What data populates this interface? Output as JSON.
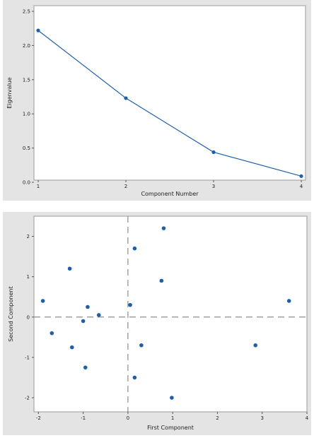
{
  "chart_data": [
    {
      "type": "line",
      "title": "",
      "xlabel": "Component Number",
      "ylabel": "Eigenvalue",
      "x": [
        1,
        2,
        3,
        4
      ],
      "series": [
        {
          "values": [
            2.22,
            1.23,
            0.44,
            0.09
          ]
        }
      ],
      "xlim": [
        1,
        4
      ],
      "ylim": [
        0,
        2.5
      ],
      "xticks": [
        1,
        2,
        3,
        4
      ],
      "xtick_labels": [
        "1",
        "2",
        "3",
        "4"
      ],
      "yticks": [
        0,
        0.5,
        1,
        1.5,
        2,
        2.5
      ],
      "ytick_labels": [
        "0.0",
        "0.5",
        "1.0",
        "1.5",
        "2.0",
        "2.5"
      ],
      "grid": false,
      "color": "#1f5fa8"
    },
    {
      "type": "scatter",
      "title": "",
      "xlabel": "First Component",
      "ylabel": "Second Component",
      "points": [
        [
          -1.9,
          0.4
        ],
        [
          -1.7,
          -0.4
        ],
        [
          -1.3,
          1.2
        ],
        [
          -1.25,
          -0.75
        ],
        [
          -1.0,
          -0.1
        ],
        [
          -0.95,
          -1.25
        ],
        [
          -0.9,
          0.25
        ],
        [
          -0.65,
          0.05
        ],
        [
          0.05,
          0.3
        ],
        [
          0.15,
          1.7
        ],
        [
          0.15,
          -1.5
        ],
        [
          0.3,
          -0.7
        ],
        [
          0.75,
          0.9
        ],
        [
          0.8,
          2.2
        ],
        [
          0.98,
          -2.0
        ],
        [
          2.85,
          -0.7
        ],
        [
          3.6,
          0.4
        ]
      ],
      "xlim": [
        -2.1,
        4.0
      ],
      "ylim": [
        -2.35,
        2.5
      ],
      "xticks": [
        -2,
        -1,
        0,
        1,
        2,
        3,
        4
      ],
      "xtick_labels": [
        "-2",
        "-1",
        "0",
        "1",
        "2",
        "3",
        "4"
      ],
      "yticks": [
        -2,
        -1,
        0,
        1,
        2
      ],
      "ytick_labels": [
        "-2",
        "-1",
        "0",
        "1",
        "2"
      ],
      "reference_lines": {
        "x": 0,
        "y": 0,
        "style": "dashed"
      },
      "grid": false,
      "color": "#1f5fa8"
    }
  ]
}
